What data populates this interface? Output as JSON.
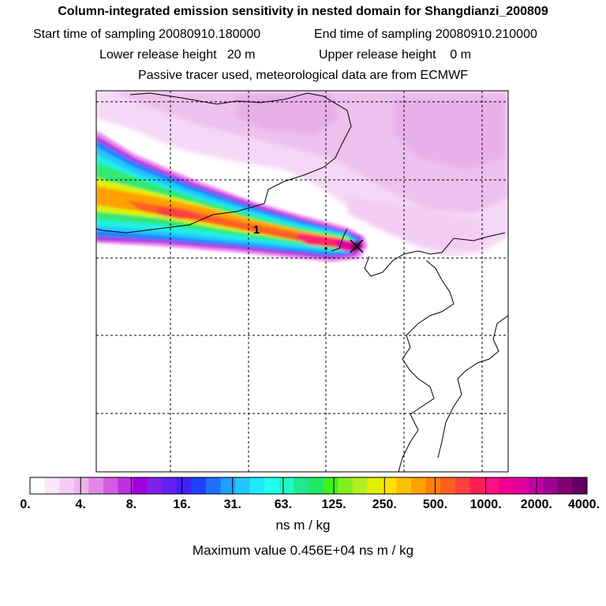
{
  "header": {
    "title": "Column-integrated emission sensitivity in nested domain for Shangdianzi_200809",
    "start_label": "Start time of sampling 20080910.180000",
    "end_label": "End time of sampling 20080910.210000",
    "lower_label": "Lower release height   20 m",
    "upper_label": "Upper release height    0 m",
    "tracer_label": "Passive tracer used, meteorological data are from ECMWF"
  },
  "map": {
    "marker_label": "1"
  },
  "colorbar": {
    "tick_labels": [
      "0.",
      "4.",
      "8.",
      "16.",
      "31.",
      "63.",
      "125.",
      "250.",
      "500.",
      "1000.",
      "2000.",
      "4000."
    ],
    "colors": [
      "#ffffff",
      "#fbe6fb",
      "#f5ccf5",
      "#eeb3ee",
      "#e088e8",
      "#d45ae2",
      "#c030e0",
      "#a000e0",
      "#8020e8",
      "#6020f0",
      "#4020f8",
      "#2040ff",
      "#2070ff",
      "#20a0ff",
      "#20c8ff",
      "#20e8ff",
      "#20ffee",
      "#20f8c0",
      "#20e890",
      "#20e860",
      "#40f020",
      "#80f020",
      "#b0f020",
      "#e0f000",
      "#ffe000",
      "#ffc000",
      "#ffa000",
      "#ff8000",
      "#ff6020",
      "#ff4040",
      "#ff2050",
      "#ff1080",
      "#f00090",
      "#e000a0",
      "#c000a0",
      "#a00090",
      "#800070",
      "#600060"
    ],
    "units": "ns m / kg",
    "max_value": "Maximum value  0.456E+04 ns m / kg"
  }
}
